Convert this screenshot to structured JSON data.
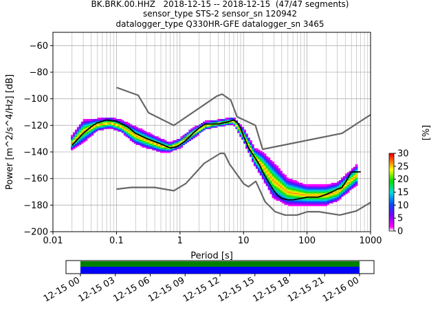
{
  "title": {
    "line1": "BK.BRK.00.HHZ   2018-12-15 -- 2018-12-15  (47/47 segments)",
    "line2": "sensor_type STS-2 sensor_sn 120942",
    "line3": "datalogger_type Q330HR-GFE datalogger_sn 3465"
  },
  "chart_data": [
    {
      "type": "heatmap",
      "title": "BK.BRK.00.HHZ   2018-12-15 -- 2018-12-15  (47/47 segments)",
      "xlabel": "Period [s]",
      "ylabel": "Power [m^2/s^4/Hz] [dB]",
      "xscale": "log",
      "xlim": [
        0.01,
        1000
      ],
      "ylim": [
        -200,
        -50
      ],
      "x_ticks": [
        "0.01",
        "0.1",
        "1",
        "10",
        "100",
        "1000"
      ],
      "y_ticks": [
        "−200",
        "−180",
        "−160",
        "−140",
        "−120",
        "−100",
        "−80",
        "−60"
      ],
      "grid": true,
      "colorbar": {
        "label": "[%]",
        "ticks": [
          "0",
          "5",
          "10",
          "15",
          "20",
          "25",
          "30"
        ],
        "range": [
          0,
          30
        ]
      },
      "series": [
        {
          "role": "mode",
          "x": [
            0.02,
            0.025,
            0.03,
            0.04,
            0.05,
            0.07,
            0.1,
            0.15,
            0.2,
            0.3,
            0.5,
            0.7,
            0.9,
            1.2,
            1.6,
            2,
            2.5,
            3,
            4,
            5,
            6,
            7,
            8,
            9,
            10,
            12,
            15,
            18,
            20,
            25,
            30,
            35,
            40,
            50,
            60,
            80,
            100,
            150,
            200,
            250,
            300,
            350,
            400,
            500,
            700
          ],
          "y": [
            -135,
            -130,
            -126,
            -121,
            -118,
            -116,
            -117,
            -121,
            -126,
            -130,
            -134,
            -137,
            -136,
            -132,
            -126,
            -122,
            -119,
            -119,
            -119,
            -118,
            -117,
            -116,
            -118,
            -122,
            -128,
            -137,
            -144,
            -150,
            -155,
            -163,
            -169,
            -173,
            -175,
            -176,
            -176,
            -175,
            -174,
            -174,
            -172,
            -170,
            -168,
            -167,
            -163,
            -155,
            -155
          ]
        },
        {
          "role": "high-noise-model",
          "x": [
            0.1,
            0.22,
            0.32,
            0.8,
            3.8,
            4.6,
            6.3,
            7.9,
            15.4,
            20,
            354.8,
            1000
          ],
          "y": [
            -91.5,
            -97.4,
            -110.5,
            -120,
            -98,
            -96.5,
            -101,
            -113.5,
            -120,
            -138,
            -126,
            -112
          ]
        },
        {
          "role": "low-noise-model",
          "x": [
            0.1,
            0.17,
            0.4,
            0.8,
            1.24,
            2.4,
            4.3,
            5,
            6,
            10,
            12,
            15.6,
            21.9,
            31.6,
            45,
            70,
            101,
            154,
            328,
            600,
            1000
          ],
          "y": [
            -168,
            -166.7,
            -166.7,
            -169.2,
            -163.7,
            -148.6,
            -141.1,
            -141.1,
            -149,
            -163.8,
            -166.2,
            -162.1,
            -177.5,
            -185,
            -187.5,
            -187.5,
            -185,
            -185,
            -187.5,
            -184.4,
            -178
          ]
        }
      ],
      "density_scatter": [
        {
          "x": 0.02,
          "ylo": -138,
          "yhi": -128
        },
        {
          "x": 0.03,
          "ylo": -133,
          "yhi": -116
        },
        {
          "x": 0.05,
          "ylo": -124,
          "yhi": -115
        },
        {
          "x": 0.08,
          "ylo": -122,
          "yhi": -114
        },
        {
          "x": 0.12,
          "ylo": -125,
          "yhi": -116
        },
        {
          "x": 0.2,
          "ylo": -134,
          "yhi": -121
        },
        {
          "x": 0.3,
          "ylo": -137,
          "yhi": -125
        },
        {
          "x": 0.5,
          "ylo": -140,
          "yhi": -130
        },
        {
          "x": 0.7,
          "ylo": -140,
          "yhi": -133
        },
        {
          "x": 1.0,
          "ylo": -137,
          "yhi": -130
        },
        {
          "x": 1.5,
          "ylo": -131,
          "yhi": -123
        },
        {
          "x": 2.5,
          "ylo": -123,
          "yhi": -117
        },
        {
          "x": 4.0,
          "ylo": -121,
          "yhi": -116
        },
        {
          "x": 7.0,
          "ylo": -119,
          "yhi": -114
        },
        {
          "x": 10.0,
          "ylo": -132,
          "yhi": -122
        },
        {
          "x": 15.0,
          "ylo": -150,
          "yhi": -137
        },
        {
          "x": 20.0,
          "ylo": -160,
          "yhi": -140
        },
        {
          "x": 30.0,
          "ylo": -175,
          "yhi": -148
        },
        {
          "x": 50.0,
          "ylo": -180,
          "yhi": -160
        },
        {
          "x": 100.0,
          "ylo": -180,
          "yhi": -165
        },
        {
          "x": 200.0,
          "ylo": -180,
          "yhi": -165
        },
        {
          "x": 300.0,
          "ylo": -177,
          "yhi": -163
        },
        {
          "x": 600.0,
          "ylo": -165,
          "yhi": -150
        }
      ]
    },
    {
      "type": "bar",
      "title": "",
      "x_ticks": [
        "12-15 00",
        "12-15 03",
        "12-15 06",
        "12-15 09",
        "12-15 12",
        "12-15 15",
        "12-15 18",
        "12-15 21",
        "12-16 00"
      ],
      "series": [
        {
          "name": "data-available",
          "color": "#008000"
        },
        {
          "name": "data-used",
          "color": "#0000ff"
        }
      ]
    }
  ],
  "colors": {
    "noise_model": "#666666",
    "mode_line": "#000000",
    "grid": "#b0b0b0"
  }
}
